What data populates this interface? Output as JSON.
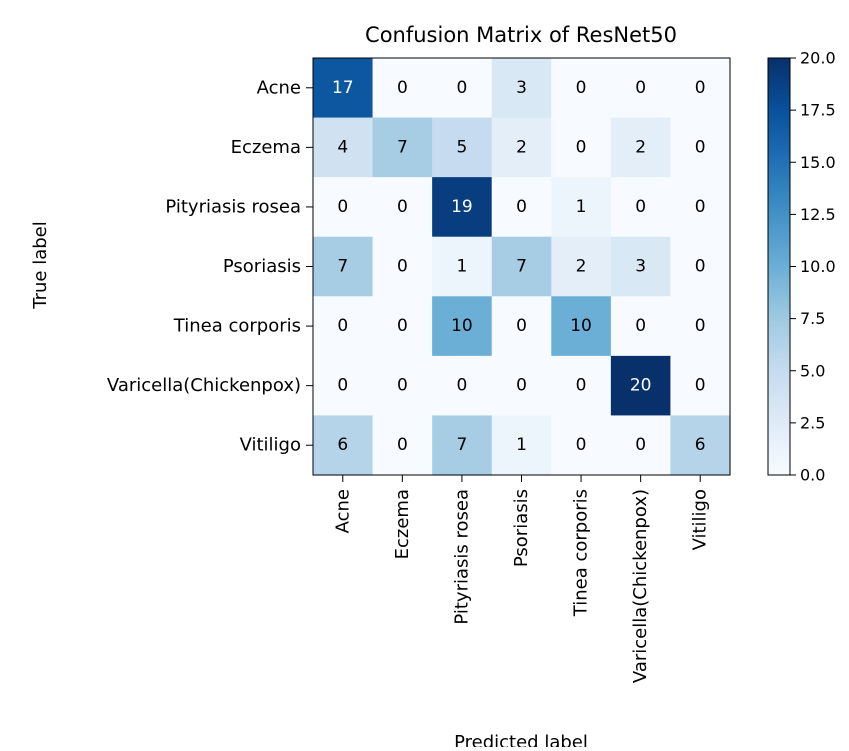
{
  "chart_data": {
    "type": "heatmap",
    "title": "Confusion Matrix of ResNet50",
    "xlabel": "Predicted label",
    "ylabel": "True label",
    "x_categories": [
      "Acne",
      "Eczema",
      "Pityriasis rosea",
      "Psoriasis",
      "Tinea corporis",
      "Varicella(Chickenpox)",
      "Vitiligo"
    ],
    "y_categories": [
      "Acne",
      "Eczema",
      "Pityriasis rosea",
      "Psoriasis",
      "Tinea corporis",
      "Varicella(Chickenpox)",
      "Vitiligo"
    ],
    "values": [
      [
        17,
        0,
        0,
        3,
        0,
        0,
        0
      ],
      [
        4,
        7,
        5,
        2,
        0,
        2,
        0
      ],
      [
        0,
        0,
        19,
        0,
        1,
        0,
        0
      ],
      [
        7,
        0,
        1,
        7,
        2,
        3,
        0
      ],
      [
        0,
        0,
        10,
        0,
        10,
        0,
        0
      ],
      [
        0,
        0,
        0,
        0,
        0,
        20,
        0
      ],
      [
        6,
        0,
        7,
        1,
        0,
        0,
        6
      ]
    ],
    "colormap": "Blues",
    "colorbar": {
      "range": [
        0,
        20
      ],
      "ticks": [
        "0.0",
        "2.5",
        "5.0",
        "7.5",
        "10.0",
        "12.5",
        "15.0",
        "17.5",
        "20.0"
      ]
    }
  }
}
